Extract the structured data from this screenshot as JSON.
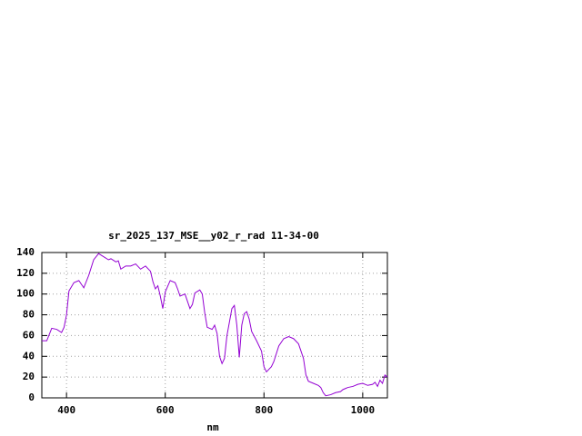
{
  "chart_data": {
    "type": "line",
    "title": "sr_2025_137_MSE__y02_r_rad 11-34-00",
    "x_label": "nm",
    "xlim": [
      350,
      1050
    ],
    "xticks": [
      400,
      600,
      800,
      1000
    ],
    "ylim": [
      0,
      140
    ],
    "yticks": [
      0,
      20,
      40,
      60,
      80,
      100,
      120,
      140
    ],
    "grid": true,
    "series": [
      {
        "color": "#9400d3",
        "x": [
          350,
          360,
          370,
          380,
          390,
          395,
          400,
          405,
          415,
          425,
          435,
          445,
          455,
          465,
          475,
          485,
          490,
          500,
          505,
          510,
          520,
          530,
          540,
          550,
          560,
          570,
          575,
          580,
          585,
          590,
          595,
          600,
          610,
          620,
          625,
          630,
          640,
          650,
          655,
          660,
          670,
          675,
          680,
          685,
          695,
          700,
          705,
          710,
          715,
          720,
          725,
          735,
          740,
          745,
          750,
          755,
          760,
          765,
          770,
          775,
          785,
          795,
          800,
          805,
          815,
          820,
          830,
          840,
          850,
          860,
          870,
          875,
          880,
          885,
          890,
          900,
          910,
          915,
          920,
          925,
          935,
          945,
          955,
          960,
          970,
          980,
          990,
          1000,
          1010,
          1020,
          1025,
          1030,
          1035,
          1040,
          1045,
          1050
        ],
        "values": [
          55,
          55,
          67,
          66,
          63,
          68,
          80,
          103,
          111,
          113,
          106,
          118,
          133,
          139,
          136,
          133,
          134,
          131,
          132,
          124,
          127,
          127,
          129,
          124,
          127,
          122,
          112,
          105,
          108,
          98,
          86,
          102,
          113,
          111,
          105,
          98,
          100,
          86,
          90,
          101,
          104,
          100,
          82,
          68,
          66,
          70,
          62,
          40,
          33,
          38,
          60,
          86,
          89,
          70,
          39,
          70,
          81,
          83,
          76,
          64,
          55,
          45,
          30,
          25,
          30,
          35,
          50,
          57,
          59,
          57,
          52,
          45,
          38,
          22,
          16,
          14,
          12,
          10,
          5,
          2,
          3,
          5,
          6,
          8,
          10,
          11,
          13,
          14,
          12,
          13,
          15,
          11,
          17,
          14,
          22,
          20
        ]
      }
    ]
  }
}
